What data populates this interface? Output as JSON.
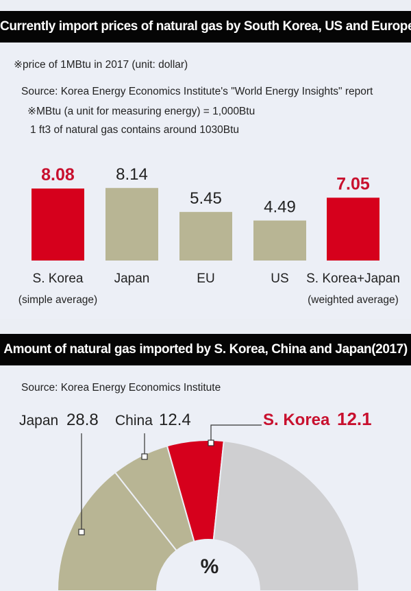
{
  "chart_data": [
    {
      "type": "bar",
      "title": "Currently import prices of natural gas by South Korea, US and Europe",
      "notes": {
        "unit": "※price of 1MBtu in 2017 (unit: dollar)",
        "source": "Source: Korea Energy Economics Institute's \"World Energy Insights\" report",
        "mbtu": "※MBtu (a unit for measuring energy) = 1,000Btu",
        "ft3": "1 ft3 of natural gas contains around 1030Btu"
      },
      "categories": [
        "S. Korea",
        "Japan",
        "EU",
        "US",
        "S. Korea+Japan"
      ],
      "sublabels": [
        "(simple average)",
        "",
        "",
        "",
        "(weighted average)"
      ],
      "values": [
        8.08,
        8.14,
        5.45,
        4.49,
        7.05
      ],
      "value_labels": [
        "8.08",
        "8.14",
        "5.45",
        "4.49",
        "7.05"
      ],
      "highlight": [
        true,
        false,
        false,
        false,
        true
      ],
      "colors": {
        "highlight": "#d6001c",
        "normal": "#b8b594",
        "highlight_text": "#c8102e",
        "normal_text": "#222222"
      },
      "ylim": [
        0,
        10
      ]
    },
    {
      "type": "pie",
      "subtype": "semi-donut",
      "title": "Amount of natural gas imported by S. Korea, China and Japan(2017)",
      "source": "Source: Korea Energy Economics Institute",
      "center_label": "%",
      "slices": [
        {
          "name": "Japan",
          "value": 28.8,
          "value_label": "28.8",
          "color": "#b8b594",
          "label_color": "#222222"
        },
        {
          "name": "China",
          "value": 12.4,
          "value_label": "12.4",
          "color": "#b8b594",
          "label_color": "#222222"
        },
        {
          "name": "S. Korea",
          "value": 12.1,
          "value_label": "12.1",
          "color": "#d6001c",
          "label_color": "#c8102e"
        },
        {
          "name": "",
          "value": 46.7,
          "value_label": "",
          "color": "#cfcfd1",
          "label_color": ""
        }
      ]
    }
  ]
}
